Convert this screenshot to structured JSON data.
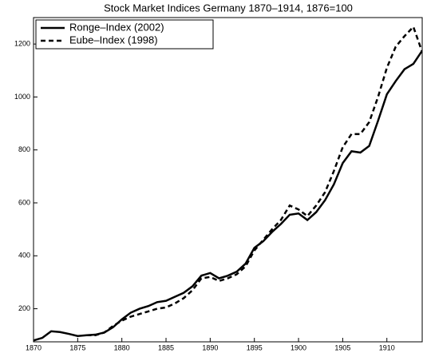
{
  "chart_data": {
    "type": "line",
    "title": "Stock Market Indices Germany 1870–1914, 1876=100",
    "x": [
      1870,
      1871,
      1872,
      1873,
      1874,
      1875,
      1876,
      1877,
      1878,
      1879,
      1880,
      1881,
      1882,
      1883,
      1884,
      1885,
      1886,
      1887,
      1888,
      1889,
      1890,
      1891,
      1892,
      1893,
      1894,
      1895,
      1896,
      1897,
      1898,
      1899,
      1900,
      1901,
      1902,
      1903,
      1904,
      1905,
      1906,
      1907,
      1908,
      1909,
      1910,
      1911,
      1912,
      1913,
      1914
    ],
    "series": [
      {
        "name": "Ronge–Index (2002)",
        "color": "#000000",
        "dash": "solid",
        "values": [
          80,
          90,
          115,
          112,
          105,
          97,
          100,
          102,
          110,
          130,
          160,
          185,
          200,
          210,
          225,
          230,
          245,
          260,
          285,
          325,
          335,
          315,
          325,
          340,
          370,
          430,
          455,
          490,
          520,
          555,
          560,
          535,
          565,
          610,
          670,
          750,
          795,
          790,
          815,
          910,
          1010,
          1060,
          1105,
          1125,
          1175
        ]
      },
      {
        "name": "Eube–Index (1998)",
        "color": "#000000",
        "dash": "dashed",
        "values": [
          null,
          null,
          null,
          null,
          null,
          null,
          100,
          100,
          110,
          135,
          155,
          170,
          180,
          190,
          200,
          205,
          220,
          240,
          270,
          315,
          320,
          305,
          315,
          330,
          360,
          420,
          460,
          500,
          535,
          590,
          575,
          550,
          590,
          640,
          720,
          810,
          860,
          860,
          905,
          1000,
          1110,
          1190,
          1230,
          1265,
          1170
        ]
      }
    ],
    "xlim": [
      1870,
      1914
    ],
    "ylim": [
      75,
      1300
    ],
    "xticks": [
      1870,
      1875,
      1880,
      1885,
      1890,
      1895,
      1900,
      1905,
      1910
    ],
    "yticks": [
      200,
      400,
      600,
      800,
      1000,
      1200
    ],
    "legend": "upper left",
    "grid": false
  }
}
